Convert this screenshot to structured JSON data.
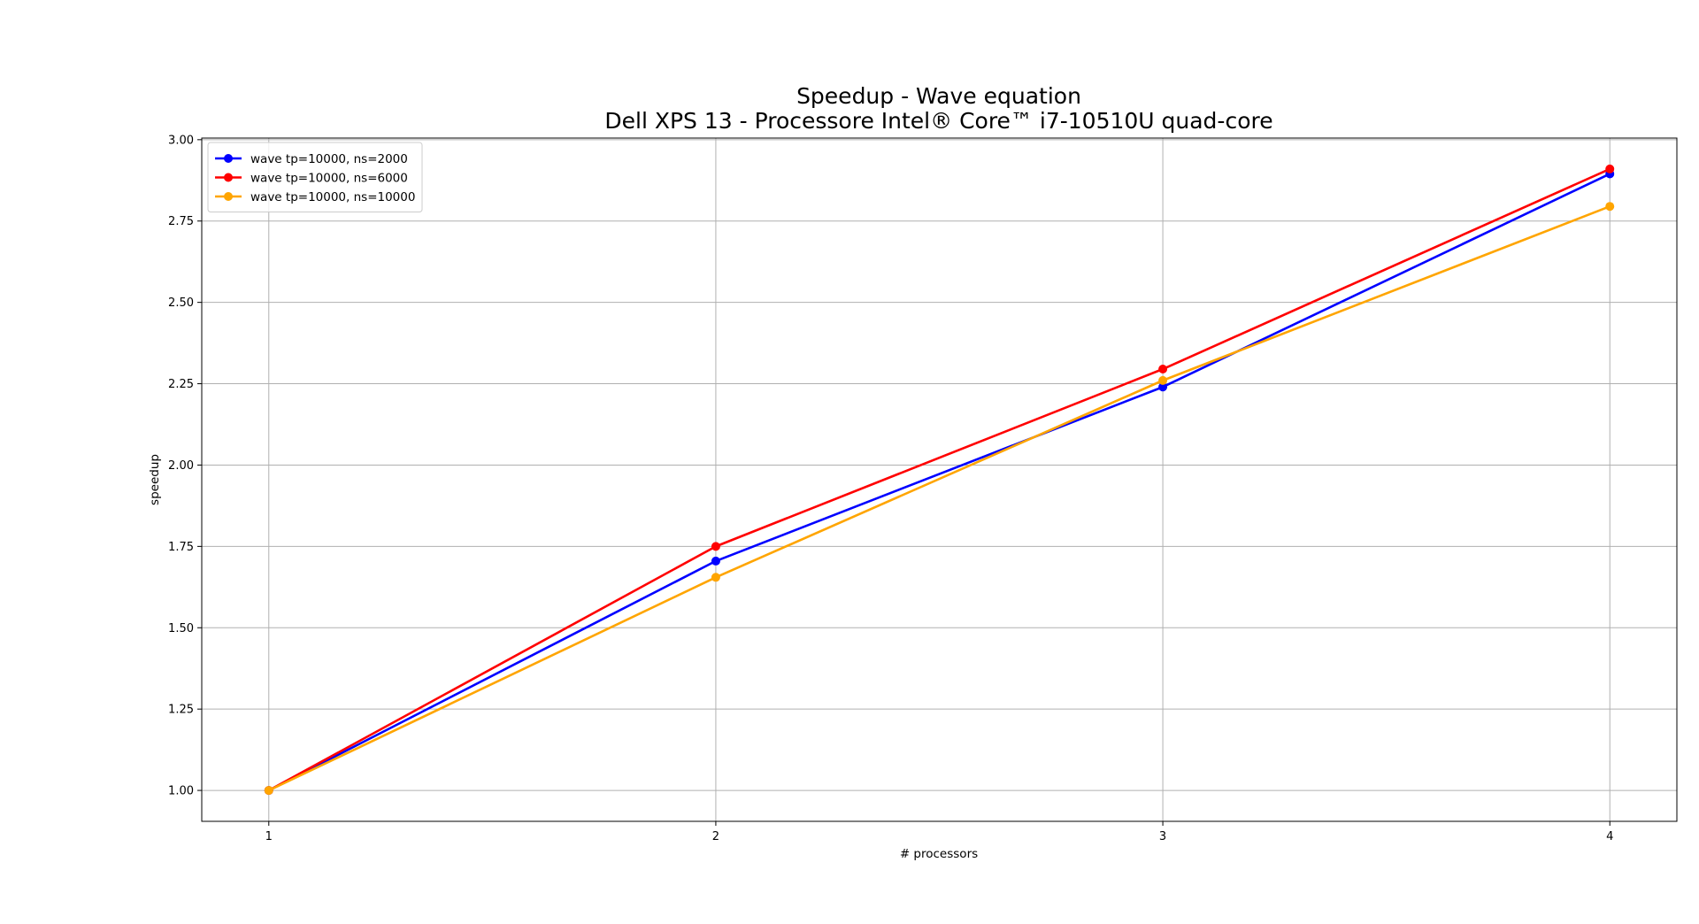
{
  "chart_data": {
    "type": "line",
    "title_line1": "Speedup -  Wave equation",
    "title_line2": "Dell XPS 13 - Processore Intel® Core™ i7-10510U quad-core",
    "xlabel": "# processors",
    "ylabel": "speedup",
    "x": [
      1,
      2,
      3,
      4
    ],
    "x_ticks": [
      1,
      2,
      3,
      4
    ],
    "x_tick_labels": [
      "1",
      "2",
      "3",
      "4"
    ],
    "y_ticks": [
      1.0,
      1.25,
      1.5,
      1.75,
      2.0,
      2.25,
      2.5,
      2.75,
      3.0
    ],
    "y_tick_labels": [
      "1.00",
      "1.25",
      "1.50",
      "1.75",
      "2.00",
      "2.25",
      "2.50",
      "2.75",
      "3.00"
    ],
    "xlim": [
      0.85,
      4.15
    ],
    "ylim": [
      0.905,
      3.005
    ],
    "grid": true,
    "legend_position": "top-left",
    "series": [
      {
        "name": "wave tp=10000, ns=2000",
        "color": "#0000ff",
        "marker": "circle",
        "values": [
          1.0,
          1.705,
          2.24,
          2.895
        ]
      },
      {
        "name": "wave tp=10000, ns=6000",
        "color": "#ff0000",
        "marker": "circle",
        "values": [
          1.0,
          1.75,
          2.295,
          2.91
        ]
      },
      {
        "name": "wave tp=10000, ns=10000",
        "color": "#ffa500",
        "marker": "circle",
        "values": [
          1.0,
          1.655,
          2.26,
          2.795
        ]
      }
    ]
  }
}
